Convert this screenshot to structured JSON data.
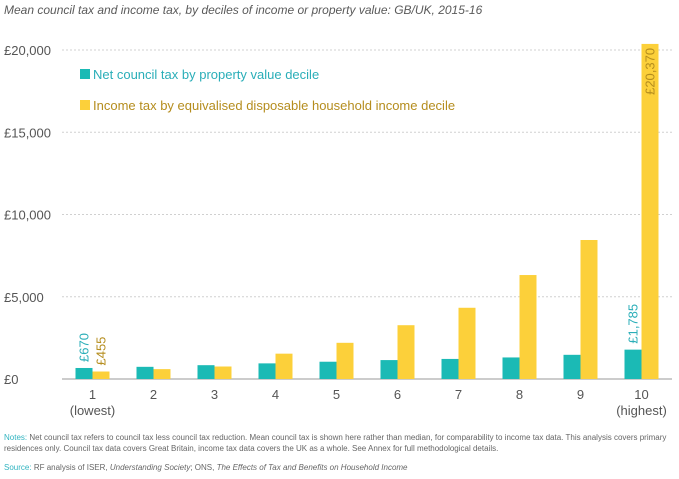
{
  "colors": {
    "council": "#1bbab5",
    "income": "#fcd03a",
    "council_label": "#2aaeb8",
    "income_label": "#b58d1e",
    "axis_text": "#555555",
    "grid": "#d0d0d0",
    "note_label": "#31b4c0"
  },
  "chart_data": {
    "type": "bar",
    "title": "Mean council tax and income tax, by deciles of income or property value: GB/UK, 2015-16",
    "categories": [
      "1",
      "2",
      "3",
      "4",
      "5",
      "6",
      "7",
      "8",
      "9",
      "10"
    ],
    "category_sublabels": [
      "(lowest)",
      "",
      "",
      "",
      "",
      "",
      "",
      "",
      "",
      "(highest)"
    ],
    "ylim": [
      0,
      20000
    ],
    "yticks": [
      0,
      5000,
      10000,
      15000,
      20000
    ],
    "ytick_labels": [
      "£0",
      "£5,000",
      "£10,000",
      "£15,000",
      "£20,000"
    ],
    "grid": true,
    "legend_position": "top-left",
    "series": [
      {
        "name": "Net council tax by property value decile",
        "color_key": "council",
        "values": [
          670,
          740,
          840,
          950,
          1050,
          1150,
          1220,
          1310,
          1470,
          1785
        ]
      },
      {
        "name": "Income tax by equivalised disposable household income decile",
        "color_key": "income",
        "values": [
          455,
          600,
          760,
          1540,
          2200,
          3270,
          4330,
          6320,
          8450,
          20370
        ]
      }
    ],
    "data_labels": [
      {
        "series": 0,
        "index": 0,
        "text": "£670"
      },
      {
        "series": 1,
        "index": 0,
        "text": "£455"
      },
      {
        "series": 0,
        "index": 9,
        "text": "£1,785"
      },
      {
        "series": 1,
        "index": 9,
        "text": "£20,370"
      }
    ]
  },
  "notes": {
    "label": "Notes:",
    "text": "Net council tax refers to council tax less council tax reduction. Mean council tax is shown here rather than median, for comparability to income tax data. This analysis covers primary residences only. Council tax data covers Great Britain, income tax data covers the UK as a whole. See Annex for full methodological details."
  },
  "source": {
    "label": "Source:",
    "prefix": "RF analysis of ISER, ",
    "italic1": "Understanding Society",
    "middle": "; ONS, ",
    "italic2": "The Effects of Tax and Benefits on Household Income"
  }
}
